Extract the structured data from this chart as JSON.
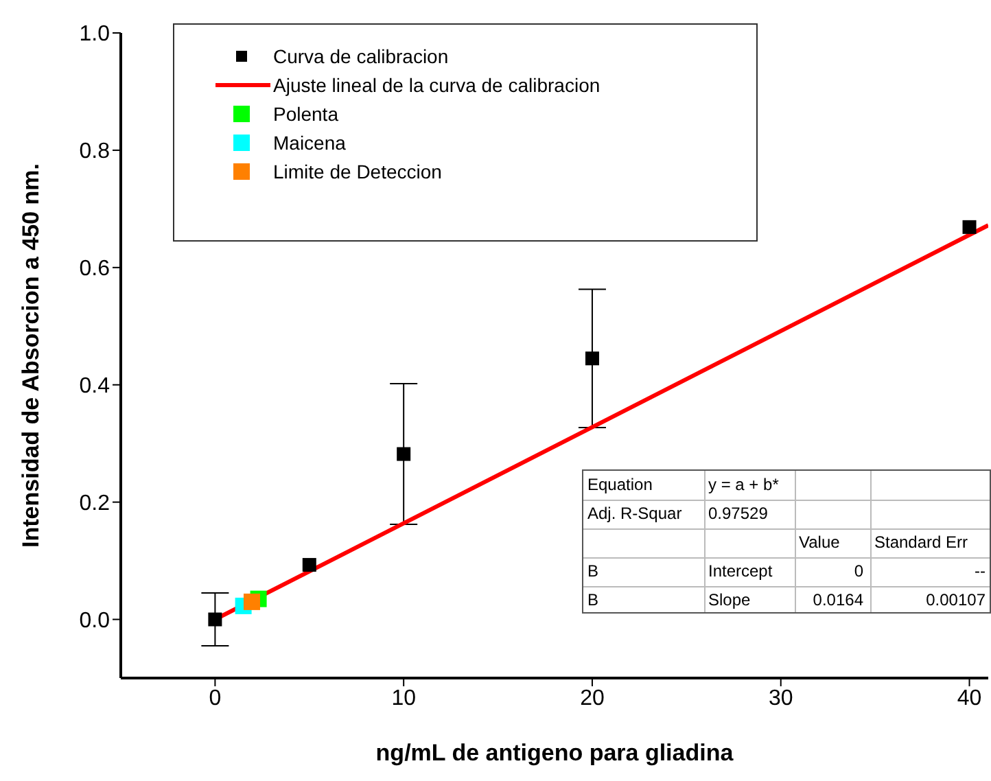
{
  "chart_data": {
    "type": "scatter",
    "xlabel": "ng/mL de antigeno para gliadina",
    "ylabel": "Intensidad de Absorcion a 450 nm.",
    "xlim": [
      -5,
      41
    ],
    "xticks": [
      0,
      10,
      20,
      30,
      40
    ],
    "ylim": [
      -0.1,
      1.0
    ],
    "yticks": [
      {
        "value": 0,
        "label": "0.0"
      },
      {
        "value": 0.2,
        "label": "0.2"
      },
      {
        "value": 0.4,
        "label": "0.4"
      },
      {
        "value": 0.6,
        "label": "0.6"
      },
      {
        "value": 0.8,
        "label": "0.8"
      },
      {
        "value": 1,
        "label": "1.0"
      }
    ],
    "grid": false,
    "legend": "top left",
    "marker": "square",
    "series": [
      {
        "name": "Curva de calibracion",
        "color": "#000000",
        "x": [
          0,
          5,
          10,
          20,
          40
        ],
        "values": [
          0,
          0.093,
          0.282,
          0.445,
          0.669
        ],
        "errors": [
          0.045,
          null,
          0.12,
          0.118,
          null
        ]
      },
      {
        "name": "Ajuste lineal de la curva de calibracion",
        "type": "line",
        "marker": "none",
        "color": "#ff0000",
        "x": [
          0,
          41
        ],
        "values": [
          0,
          0.672
        ]
      },
      {
        "name": "Polenta",
        "color": "#00ff00",
        "x": [
          2.3
        ],
        "values": [
          0.035
        ]
      },
      {
        "name": "Maicena",
        "color": "#00ffff",
        "x": [
          1.5
        ],
        "values": [
          0.023
        ]
      },
      {
        "name": "Limite de Deteccion",
        "color": "#ff8000",
        "x": [
          1.95
        ],
        "values": [
          0.03
        ]
      }
    ],
    "annotations": [
      "Equation",
      "y = a + b*",
      "Adj. R-Squar",
      "0.97529",
      "Value",
      "Standard Err",
      "B",
      "Intercept",
      "0",
      "--",
      "B",
      "Slope",
      "0.0164",
      "0.00107"
    ]
  }
}
